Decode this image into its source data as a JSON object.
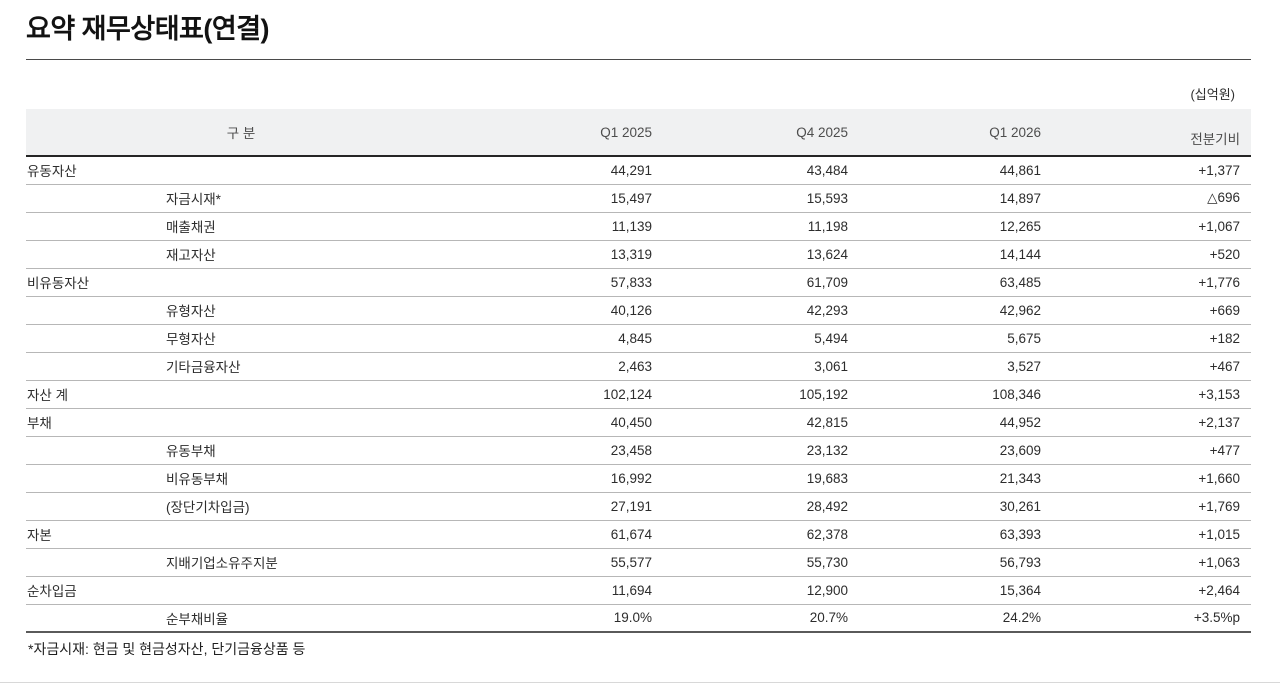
{
  "title": "요약 재무상태표(연결)",
  "unit_label": "(십억원)",
  "table": {
    "headers": {
      "category": "구 분",
      "col1": "Q1 2025",
      "col2": "Q4 2025",
      "col3": "Q1 2026",
      "col4": "전분기비"
    },
    "rows": [
      {
        "label": "유동자산",
        "indent": false,
        "values": [
          "44,291",
          "43,484",
          "44,861",
          "+1,377"
        ]
      },
      {
        "label": "자금시재*",
        "indent": true,
        "values": [
          "15,497",
          "15,593",
          "14,897",
          "△696"
        ]
      },
      {
        "label": "매출채권",
        "indent": true,
        "values": [
          "11,139",
          "11,198",
          "12,265",
          "+1,067"
        ]
      },
      {
        "label": "재고자산",
        "indent": true,
        "values": [
          "13,319",
          "13,624",
          "14,144",
          "+520"
        ]
      },
      {
        "label": "비유동자산",
        "indent": false,
        "values": [
          "57,833",
          "61,709",
          "63,485",
          "+1,776"
        ]
      },
      {
        "label": "유형자산",
        "indent": true,
        "values": [
          "40,126",
          "42,293",
          "42,962",
          "+669"
        ]
      },
      {
        "label": "무형자산",
        "indent": true,
        "values": [
          "4,845",
          "5,494",
          "5,675",
          "+182"
        ]
      },
      {
        "label": "기타금융자산",
        "indent": true,
        "values": [
          "2,463",
          "3,061",
          "3,527",
          "+467"
        ]
      },
      {
        "label": "자산 계",
        "indent": false,
        "values": [
          "102,124",
          "105,192",
          "108,346",
          "+3,153"
        ]
      },
      {
        "label": "부채",
        "indent": false,
        "values": [
          "40,450",
          "42,815",
          "44,952",
          "+2,137"
        ]
      },
      {
        "label": "유동부채",
        "indent": true,
        "values": [
          "23,458",
          "23,132",
          "23,609",
          "+477"
        ]
      },
      {
        "label": "비유동부채",
        "indent": true,
        "values": [
          "16,992",
          "19,683",
          "21,343",
          "+1,660"
        ]
      },
      {
        "label": "(장단기차입금)",
        "indent": true,
        "values": [
          "27,191",
          "28,492",
          "30,261",
          "+1,769"
        ]
      },
      {
        "label": "자본",
        "indent": false,
        "values": [
          "61,674",
          "62,378",
          "63,393",
          "+1,015"
        ]
      },
      {
        "label": "지배기업소유주지분",
        "indent": true,
        "values": [
          "55,577",
          "55,730",
          "56,793",
          "+1,063"
        ]
      },
      {
        "label": "순차입금",
        "indent": false,
        "values": [
          "11,694",
          "12,900",
          "15,364",
          "+2,464"
        ]
      },
      {
        "label": "순부채비율",
        "indent": true,
        "values": [
          "19.0%",
          "20.7%",
          "24.2%",
          "+3.5%p"
        ]
      }
    ]
  },
  "footnote": "*자금시재: 현금 및 현금성자산, 단기금융상품 등",
  "colors": {
    "header_bg": "#f0f1f2",
    "header_rule": "#252525",
    "row_rule": "#b7b7b7",
    "table_end_rule": "#5a5a5a",
    "text": "#2c2c2c"
  }
}
